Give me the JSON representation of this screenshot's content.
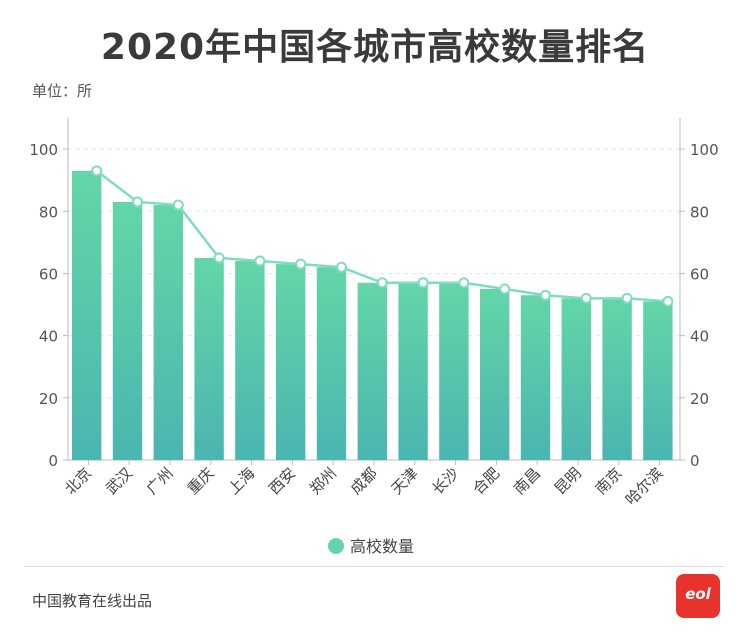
{
  "page": {
    "title": "2020年中国各城市高校数量排名",
    "unit": "单位：所",
    "footer": "中国教育在线出品",
    "logo_text": "eol"
  },
  "colors": {
    "bar_top": "#63d6a7",
    "bar_bottom": "#4bb5b0",
    "line": "#7fdcc0",
    "axis": "#bbbbbb",
    "grid": "#e6e6e6"
  },
  "chart_data": {
    "type": "bar",
    "categories": [
      "北京",
      "武汉",
      "广州",
      "重庆",
      "上海",
      "西安",
      "郑州",
      "成都",
      "天津",
      "长沙",
      "合肥",
      "南昌",
      "昆明",
      "南京",
      "哈尔滨"
    ],
    "series": [
      {
        "name": "高校数量",
        "values": [
          93,
          83,
          82,
          65,
          64,
          63,
          62,
          57,
          57,
          57,
          55,
          53,
          52,
          52,
          51
        ]
      }
    ],
    "overlay_line": true,
    "ylim": [
      0,
      110
    ],
    "yticks": [
      0,
      20,
      40,
      60,
      80,
      100
    ],
    "right_axis_ticks": [
      0,
      20,
      40,
      60,
      80,
      100
    ],
    "grid": true,
    "legend": "bottom",
    "xlabel": "",
    "ylabel": ""
  }
}
